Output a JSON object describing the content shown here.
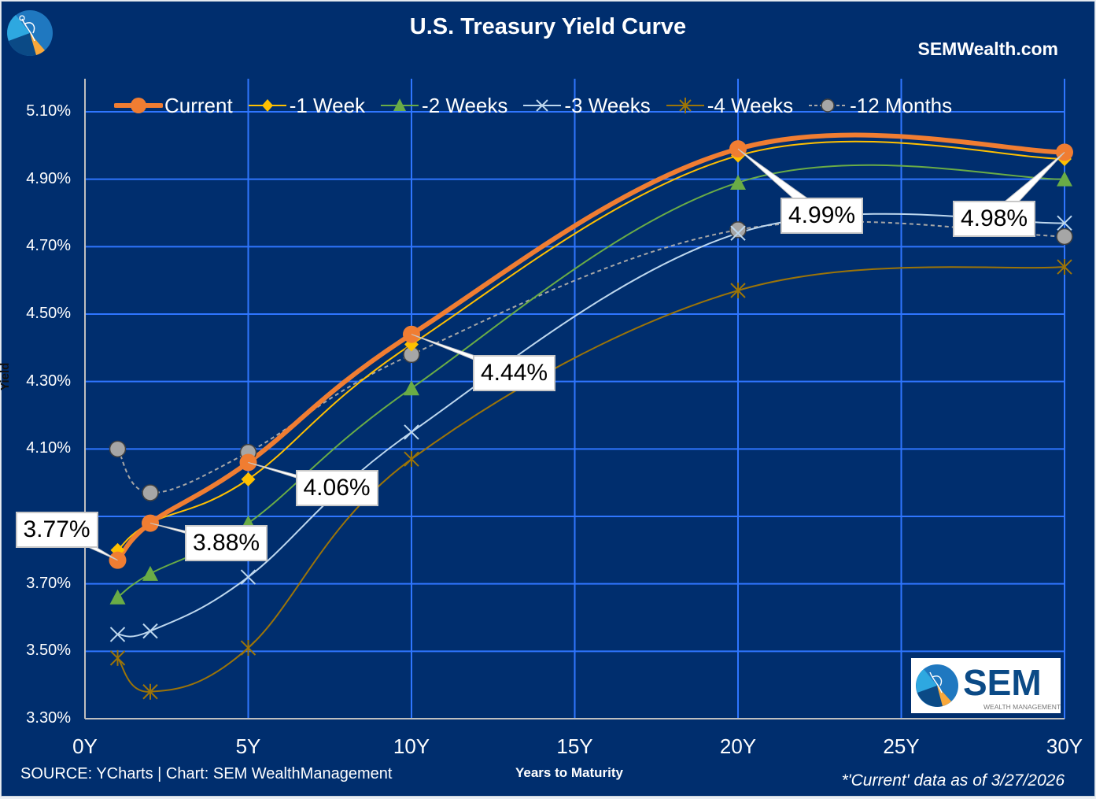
{
  "header": {
    "title": "U.S. Treasury Yield Curve",
    "site": "SEMWealth.com"
  },
  "footer": {
    "source": "SOURCE: YCharts | Chart: SEM WealthManagement",
    "note": "*'Current' data as of 3/27/2026"
  },
  "brand": {
    "logo_text": "SEM",
    "logo_subtext": "WEALTH MANAGEMENT"
  },
  "colors": {
    "background": "#002e6e",
    "grid": "#2f76ff",
    "current": "#f07d32",
    "week1": "#ffc000",
    "week2": "#6aac46",
    "week3": "#bdd7ee",
    "week4": "#9c7408",
    "months12": "#a6a6a6"
  },
  "chart_data": {
    "type": "line",
    "title": "U.S. Treasury Yield Curve",
    "xlabel": "Years to Maturity",
    "ylabel": "Yield",
    "x": [
      1,
      2,
      5,
      10,
      20,
      30
    ],
    "xlim": [
      0,
      30
    ],
    "ylim": [
      3.3,
      5.2
    ],
    "x_ticks": [
      "0Y",
      "5Y",
      "10Y",
      "15Y",
      "20Y",
      "25Y",
      "30Y"
    ],
    "x_tick_values": [
      0,
      5,
      10,
      15,
      20,
      25,
      30
    ],
    "y_ticks": [
      "3.30%",
      "3.50%",
      "3.70%",
      "4.10%",
      "4.30%",
      "4.50%",
      "4.70%",
      "4.90%",
      "5.10%"
    ],
    "y_tick_values": [
      3.3,
      3.5,
      3.7,
      4.1,
      4.3,
      4.5,
      4.7,
      4.9,
      5.1
    ],
    "grid": true,
    "legend_position": "top",
    "series": [
      {
        "name": "Current",
        "key": "current",
        "marker": "circle",
        "values": [
          3.77,
          3.88,
          4.06,
          4.44,
          4.99,
          4.98
        ]
      },
      {
        "name": "-1 Week",
        "key": "week1",
        "marker": "diamond",
        "values": [
          3.8,
          3.88,
          4.01,
          4.41,
          4.97,
          4.96
        ]
      },
      {
        "name": "-2 Weeks",
        "key": "week2",
        "marker": "triangle",
        "values": [
          3.66,
          3.73,
          3.88,
          4.28,
          4.89,
          4.9
        ]
      },
      {
        "name": "-3 Weeks",
        "key": "week3",
        "marker": "x",
        "values": [
          3.55,
          3.56,
          3.72,
          4.15,
          4.74,
          4.77
        ]
      },
      {
        "name": "-4 Weeks",
        "key": "week4",
        "marker": "star",
        "values": [
          3.48,
          3.38,
          3.51,
          4.07,
          4.57,
          4.64
        ]
      },
      {
        "name": "-12 Months",
        "key": "months12",
        "marker": "circle-dashed",
        "values": [
          4.1,
          3.97,
          4.09,
          4.38,
          4.75,
          4.73
        ]
      }
    ],
    "annotations": [
      {
        "x": 1,
        "y": 3.77,
        "text": "3.77%"
      },
      {
        "x": 2,
        "y": 3.88,
        "text": "3.88%"
      },
      {
        "x": 5,
        "y": 4.06,
        "text": "4.06%"
      },
      {
        "x": 10,
        "y": 4.44,
        "text": "4.44%"
      },
      {
        "x": 20,
        "y": 4.99,
        "text": "4.99%"
      },
      {
        "x": 30,
        "y": 4.98,
        "text": "4.98%"
      }
    ]
  }
}
